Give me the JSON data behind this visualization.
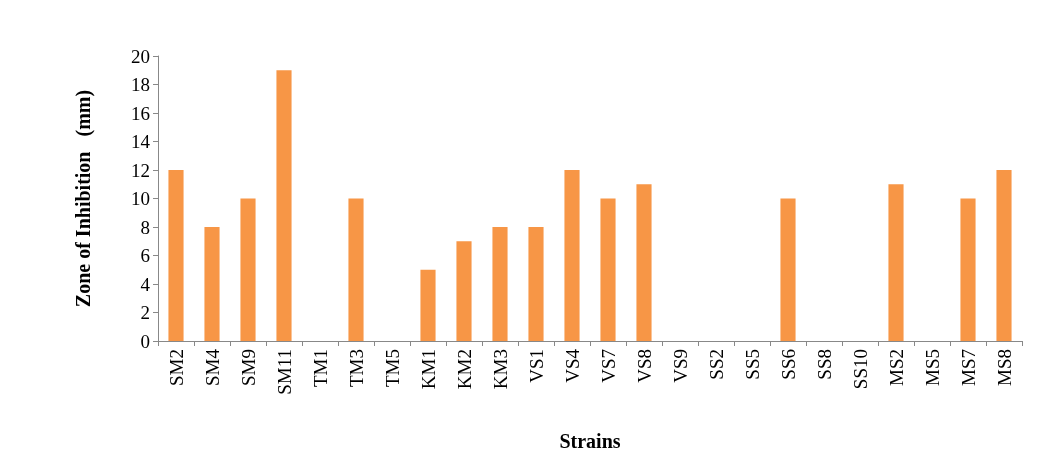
{
  "chart_data": {
    "type": "bar",
    "xlabel": "Strains",
    "ylabel": "Zone of Inhibition   (mm)",
    "categories": [
      "SM2",
      "SM4",
      "SM9",
      "SM11",
      "TM1",
      "TM3",
      "TM5",
      "KM1",
      "KM2",
      "KM3",
      "VS1",
      "VS4",
      "VS7",
      "VS8",
      "VS9",
      "SS2",
      "SS5",
      "SS6",
      "SS8",
      "SS10",
      "MS2",
      "MS5",
      "MS7",
      "MS8"
    ],
    "values": [
      12,
      8,
      10,
      19,
      0,
      10,
      0,
      5,
      7,
      8,
      8,
      12,
      10,
      11,
      0,
      0,
      0,
      10,
      0,
      0,
      11,
      0,
      10,
      12
    ],
    "color": "#f79646",
    "ylim": [
      0,
      20
    ],
    "yticks": [
      0,
      2,
      4,
      6,
      8,
      10,
      12,
      14,
      16,
      18,
      20
    ],
    "grid": false
  }
}
